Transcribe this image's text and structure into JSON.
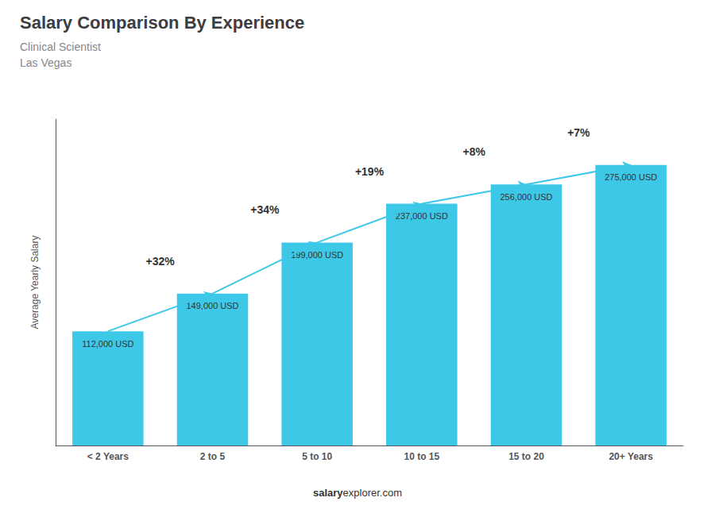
{
  "chart_data": {
    "type": "bar",
    "title": "Salary Comparison By Experience",
    "subtitle": [
      "Clinical Scientist",
      "Las Vegas"
    ],
    "ylabel": "Average Yearly Salary",
    "categories": [
      "< 2 Years",
      "2 to 5",
      "5 to 10",
      "10 to 15",
      "15 to 20",
      "20+ Years"
    ],
    "values": [
      112000,
      149000,
      199000,
      237000,
      256000,
      275000
    ],
    "value_labels": [
      "112,000 USD",
      "149,000 USD",
      "199,000 USD",
      "237,000 USD",
      "256,000 USD",
      "275,000 USD"
    ],
    "data_labels": true,
    "annotations": [
      "+32%",
      "+34%",
      "+19%",
      "+8%",
      "+7%"
    ],
    "footer": [
      "salary",
      "explorer.com"
    ],
    "color": "#3ec8e8",
    "ylim": [
      0,
      320000
    ],
    "tick_labels": "x",
    "grid": false
  }
}
